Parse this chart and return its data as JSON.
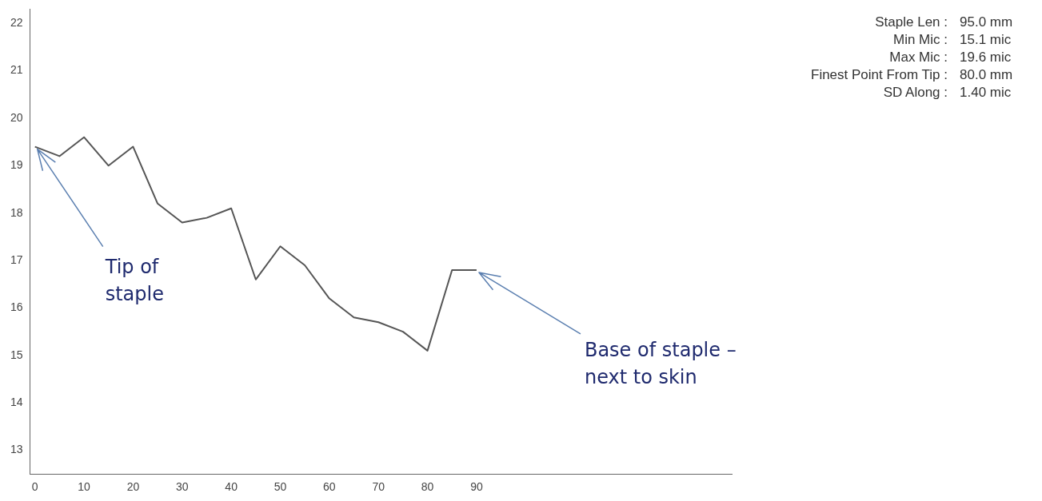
{
  "chart_data": {
    "type": "line",
    "x": [
      0,
      5,
      10,
      15,
      20,
      25,
      30,
      35,
      40,
      45,
      50,
      55,
      60,
      65,
      70,
      75,
      80,
      85,
      90
    ],
    "series": [
      {
        "color": "#555555",
        "values": [
          19.4,
          19.2,
          19.6,
          19.0,
          19.4,
          18.2,
          17.8,
          17.9,
          18.1,
          16.6,
          17.3,
          16.9,
          16.2,
          15.8,
          15.7,
          15.5,
          15.1,
          16.8,
          16.8
        ]
      }
    ],
    "xlim": [
      -1,
      142
    ],
    "xticks": [
      0,
      10,
      20,
      30,
      40,
      50,
      60,
      70,
      80,
      90
    ],
    "ylim": [
      12.5,
      22.3
    ],
    "yticks": [
      13,
      14,
      15,
      16,
      17,
      18,
      19,
      20,
      21,
      22
    ],
    "grid": false,
    "legend": false,
    "marker": "none",
    "line_style": "solid",
    "annotations": [
      "Staple Len : 95.0 mm",
      "Min Mic : 15.1 mic",
      "Max Mic : 19.6 mic",
      "Finest Point From Tip : 80.0 mm",
      "SD Along : 1.40 mic",
      {
        "text": "Tip of staple",
        "x": 0,
        "y": 19.4
      },
      {
        "text": "Base of staple – next to skin",
        "x": 90,
        "y": 16.8
      }
    ]
  }
}
